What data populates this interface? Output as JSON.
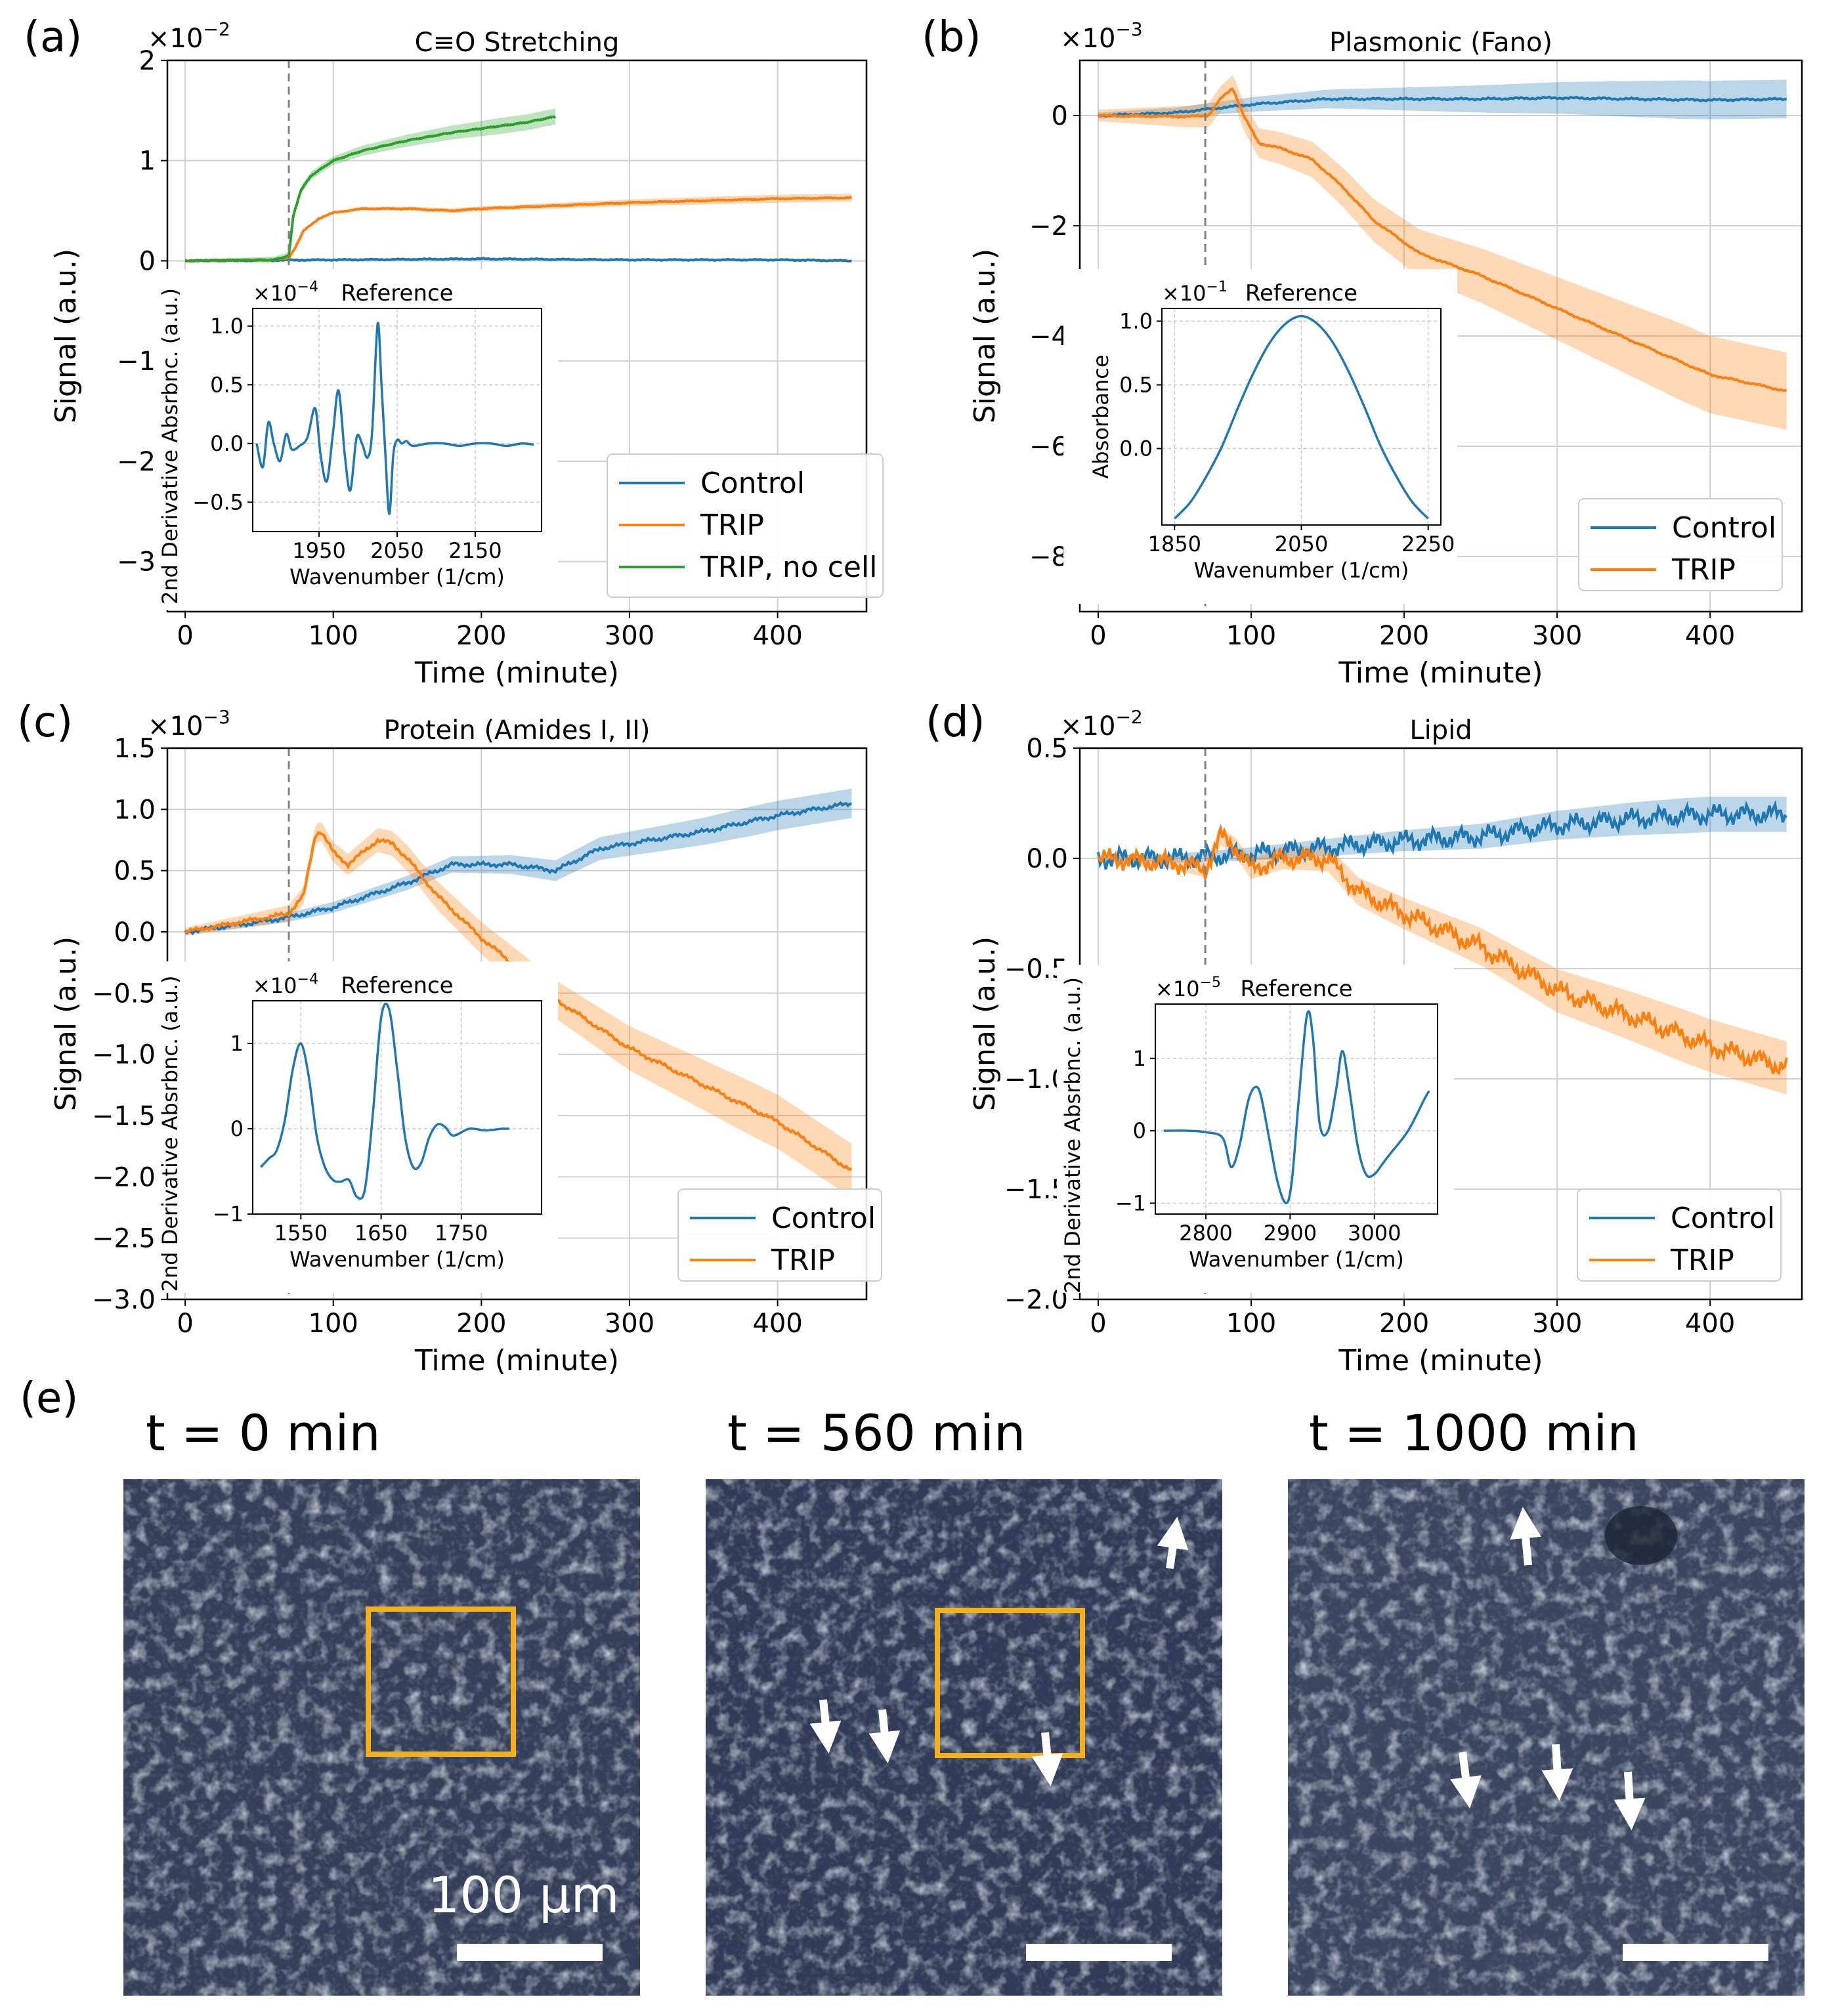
{
  "figure": {
    "panels": {
      "a": {
        "letter": "(a)",
        "title": "C≡O Stretching"
      },
      "b": {
        "letter": "(b)",
        "title": "Plasmonic (Fano)"
      },
      "c": {
        "letter": "(c)",
        "title": "Protein (Amides I, II)"
      },
      "d": {
        "letter": "(d)",
        "title": "Lipid"
      },
      "e": {
        "letter": "(e)"
      }
    },
    "common": {
      "xlabel": "Time (minute)",
      "ylabel": "Signal (a.u.)",
      "inset_title": "Reference",
      "inset_xlabel": "Wavenumber (1/cm)",
      "inset_ylabel_deriv": "2nd Derivative Absrbnc. (a.u.)",
      "inset_ylabel_abs": "Absorbance"
    },
    "legend": {
      "control": "Control",
      "trip": "TRIP",
      "trip_no_cell": "TRIP, no cell"
    },
    "colors": {
      "control": "#1f77b4",
      "trip": "#ff7f0e",
      "trip_no_cell": "#2ca02c",
      "dashed": "#808080",
      "scalebox": "#f2b01e"
    },
    "microscopy": {
      "images": [
        {
          "title": "t = 0 min",
          "scale_label": "100 μm"
        },
        {
          "title": "t = 560 min"
        },
        {
          "title": "t = 1000 min"
        }
      ]
    }
  },
  "chart_data": [
    {
      "type": "line",
      "title": "C≡O Stretching",
      "xlabel": "Time (minute)",
      "ylabel": "Signal (a.u.)",
      "multiplier_base": "×10",
      "multiplier_exp": "−2",
      "xlim": [
        -12,
        460
      ],
      "ylim": [
        -3.5,
        2.0
      ],
      "xticks": [
        0,
        100,
        200,
        300,
        400
      ],
      "xtick_labels": [
        "0",
        "100",
        "200",
        "300",
        "400"
      ],
      "yticks": [
        -3,
        -2,
        -1,
        0,
        1,
        2
      ],
      "ytick_labels": [
        "−3",
        "−2",
        "−1",
        "0",
        "1",
        "2"
      ],
      "vline_x": 70,
      "series": [
        {
          "name": "Control",
          "key": "control",
          "x": [
            0,
            100,
            200,
            300,
            400,
            450
          ],
          "y": [
            0.0,
            0.01,
            0.02,
            0.01,
            0.01,
            0.0
          ],
          "band": 0.01
        },
        {
          "name": "TRIP",
          "key": "trip",
          "x": [
            0,
            60,
            70,
            75,
            80,
            90,
            100,
            120,
            150,
            180,
            200,
            250,
            300,
            350,
            400,
            450
          ],
          "y": [
            0.0,
            0.01,
            0.03,
            0.15,
            0.3,
            0.42,
            0.48,
            0.52,
            0.52,
            0.5,
            0.52,
            0.55,
            0.58,
            0.6,
            0.62,
            0.63
          ],
          "band": 0.04
        },
        {
          "name": "TRIP, no cell",
          "key": "trip_no_cell",
          "x": [
            0,
            60,
            70,
            73,
            78,
            85,
            100,
            120,
            150,
            180,
            200,
            230,
            250
          ],
          "y": [
            0.0,
            0.01,
            0.05,
            0.45,
            0.7,
            0.85,
            1.0,
            1.1,
            1.2,
            1.28,
            1.32,
            1.38,
            1.44
          ],
          "band": 0.08
        }
      ],
      "inset": {
        "ylabel": "2nd Derivative Absrbnc. (a.u.)",
        "multiplier_base": "×10",
        "multiplier_exp": "−4",
        "xlim": [
          1865,
          2235
        ],
        "ylim": [
          -0.75,
          1.15
        ],
        "xticks": [
          1950,
          2050,
          2150
        ],
        "yticks": [
          -0.5,
          0.0,
          0.5,
          1.0
        ],
        "ytick_labels": [
          "−0.5",
          "0.0",
          "0.5",
          "1.0"
        ],
        "x": [
          1870,
          1878,
          1885,
          1892,
          1900,
          1908,
          1915,
          1925,
          1935,
          1945,
          1952,
          1960,
          1968,
          1975,
          1983,
          1990,
          1998,
          2005,
          2012,
          2018,
          2025,
          2030,
          2035,
          2040,
          2045,
          2050,
          2056,
          2062,
          2070,
          2090,
          2110,
          2130,
          2150,
          2170,
          2190,
          2210,
          2225
        ],
        "y": [
          0.0,
          -0.2,
          0.18,
          0.0,
          -0.15,
          0.08,
          -0.05,
          -0.02,
          0.05,
          0.3,
          -0.1,
          -0.32,
          0.1,
          0.45,
          -0.1,
          -0.4,
          0.05,
          0.0,
          -0.12,
          0.1,
          1.02,
          0.5,
          -0.1,
          -0.6,
          -0.1,
          0.03,
          0.0,
          0.02,
          -0.02,
          0.0,
          0.0,
          -0.02,
          0.0,
          0.0,
          -0.02,
          0.0,
          -0.01
        ]
      }
    },
    {
      "type": "line",
      "title": "Plasmonic (Fano)",
      "xlabel": "Time (minute)",
      "ylabel": "Signal (a.u.)",
      "multiplier_base": "×10",
      "multiplier_exp": "−3",
      "xlim": [
        -12,
        460
      ],
      "ylim": [
        -9.0,
        1.0
      ],
      "xticks": [
        0,
        100,
        200,
        300,
        400
      ],
      "xtick_labels": [
        "0",
        "100",
        "200",
        "300",
        "400"
      ],
      "yticks": [
        -8,
        -6,
        -4,
        -2,
        0
      ],
      "ytick_labels": [
        "−8",
        "−6",
        "−4",
        "−2",
        "0"
      ],
      "vline_x": 70,
      "series": [
        {
          "name": "Control",
          "key": "control",
          "x": [
            0,
            50,
            100,
            150,
            200,
            250,
            300,
            350,
            400,
            450
          ],
          "y": [
            0.0,
            0.05,
            0.2,
            0.3,
            0.3,
            0.3,
            0.32,
            0.3,
            0.28,
            0.3
          ],
          "band": 0.35
        },
        {
          "name": "TRIP",
          "key": "trip",
          "x": [
            0,
            60,
            72,
            80,
            88,
            95,
            105,
            120,
            140,
            160,
            180,
            210,
            250,
            300,
            350,
            400,
            450
          ],
          "y": [
            0.0,
            -0.02,
            0.0,
            0.3,
            0.5,
            0.0,
            -0.5,
            -0.6,
            -0.8,
            -1.3,
            -1.9,
            -2.5,
            -2.9,
            -3.5,
            -4.1,
            -4.7,
            -5.0
          ],
          "band": 0.7
        }
      ],
      "inset": {
        "ylabel": "Absorbance",
        "multiplier_base": "×10",
        "multiplier_exp": "−1",
        "xlim": [
          1830,
          2270
        ],
        "ylim": [
          -0.6,
          1.1
        ],
        "xticks": [
          1850,
          2050,
          2250
        ],
        "yticks": [
          0.0,
          0.5,
          1.0
        ],
        "ytick_labels": [
          "0.0",
          "0.5",
          "1.0"
        ],
        "x": [
          1850,
          1875,
          1900,
          1925,
          1950,
          1975,
          2000,
          2025,
          2050,
          2075,
          2100,
          2125,
          2150,
          2175,
          2200,
          2225,
          2250
        ],
        "y": [
          -0.55,
          -0.42,
          -0.22,
          0.02,
          0.32,
          0.6,
          0.83,
          0.98,
          1.04,
          0.98,
          0.83,
          0.6,
          0.32,
          0.02,
          -0.22,
          -0.42,
          -0.55
        ]
      }
    },
    {
      "type": "line",
      "title": "Protein (Amides I, II)",
      "xlabel": "Time (minute)",
      "ylabel": "Signal (a.u.)",
      "multiplier_base": "×10",
      "multiplier_exp": "−3",
      "xlim": [
        -12,
        460
      ],
      "ylim": [
        -3.0,
        1.5
      ],
      "xticks": [
        0,
        100,
        200,
        300,
        400
      ],
      "xtick_labels": [
        "0",
        "100",
        "200",
        "300",
        "400"
      ],
      "yticks": [
        -3.0,
        -2.5,
        -2.0,
        -1.5,
        -1.0,
        -0.5,
        0.0,
        0.5,
        1.0,
        1.5
      ],
      "ytick_labels": [
        "−3.0",
        "−2.5",
        "−2.0",
        "−1.5",
        "−1.0",
        "−0.5",
        "0.0",
        "0.5",
        "1.0",
        "1.5"
      ],
      "vline_x": 70,
      "series": [
        {
          "name": "Control",
          "key": "control",
          "x": [
            0,
            50,
            70,
            100,
            150,
            180,
            200,
            220,
            250,
            280,
            300,
            350,
            400,
            450
          ],
          "y": [
            0.0,
            0.08,
            0.12,
            0.2,
            0.4,
            0.55,
            0.55,
            0.55,
            0.5,
            0.68,
            0.72,
            0.82,
            0.95,
            1.05
          ],
          "band": 0.12
        },
        {
          "name": "TRIP",
          "key": "trip",
          "x": [
            0,
            70,
            80,
            88,
            92,
            100,
            110,
            120,
            130,
            140,
            150,
            170,
            200,
            250,
            300,
            350,
            400,
            450
          ],
          "y": [
            0.0,
            0.15,
            0.3,
            0.8,
            0.82,
            0.65,
            0.55,
            0.65,
            0.75,
            0.72,
            0.6,
            0.3,
            -0.05,
            -0.55,
            -0.95,
            -1.25,
            -1.55,
            -1.95
          ],
          "band": 0.22
        }
      ],
      "inset": {
        "ylabel": "2nd Derivative Absrbnc. (a.u.)",
        "multiplier_base": "×10",
        "multiplier_exp": "−4",
        "xlim": [
          1490,
          1850
        ],
        "ylim": [
          -1.0,
          1.5
        ],
        "xticks": [
          1550,
          1650,
          1750
        ],
        "yticks": [
          -1,
          0,
          1
        ],
        "ytick_labels": [
          "−1",
          "0",
          "1"
        ],
        "x": [
          1500,
          1510,
          1520,
          1530,
          1540,
          1550,
          1560,
          1570,
          1580,
          1590,
          1600,
          1610,
          1620,
          1630,
          1640,
          1650,
          1660,
          1670,
          1680,
          1690,
          1700,
          1710,
          1720,
          1730,
          1740,
          1760,
          1780,
          1800,
          1810
        ],
        "y": [
          -0.45,
          -0.35,
          -0.25,
          0.1,
          0.7,
          1.0,
          0.6,
          -0.1,
          -0.45,
          -0.6,
          -0.62,
          -0.6,
          -0.8,
          -0.7,
          0.2,
          1.3,
          1.4,
          0.7,
          -0.1,
          -0.45,
          -0.4,
          -0.1,
          0.05,
          0.02,
          -0.08,
          0.0,
          -0.02,
          0.0,
          0.0
        ]
      }
    },
    {
      "type": "line",
      "title": "Lipid",
      "xlabel": "Time (minute)",
      "ylabel": "Signal (a.u.)",
      "multiplier_base": "×10",
      "multiplier_exp": "−2",
      "xlim": [
        -12,
        460
      ],
      "ylim": [
        -2.0,
        0.5
      ],
      "xticks": [
        0,
        100,
        200,
        300,
        400
      ],
      "xtick_labels": [
        "0",
        "100",
        "200",
        "300",
        "400"
      ],
      "yticks": [
        -2.0,
        -1.5,
        -1.0,
        -0.5,
        0.0,
        0.5
      ],
      "ytick_labels": [
        "−2.0",
        "−1.5",
        "−1.0",
        "−0.5",
        "0.0",
        "0.5"
      ],
      "vline_x": 70,
      "series": [
        {
          "name": "Control",
          "key": "control",
          "x": [
            0,
            50,
            100,
            150,
            200,
            250,
            300,
            350,
            400,
            450
          ],
          "y": [
            0.0,
            0.0,
            0.02,
            0.05,
            0.08,
            0.1,
            0.15,
            0.18,
            0.2,
            0.2
          ],
          "band": 0.08
        },
        {
          "name": "TRIP",
          "key": "trip",
          "x": [
            0,
            50,
            70,
            80,
            90,
            100,
            120,
            150,
            170,
            200,
            250,
            300,
            350,
            400,
            450
          ],
          "y": [
            0.0,
            -0.02,
            -0.05,
            0.1,
            0.05,
            -0.05,
            0.0,
            0.0,
            -0.15,
            -0.25,
            -0.4,
            -0.6,
            -0.72,
            -0.85,
            -0.95
          ],
          "band": 0.12
        }
      ],
      "inset": {
        "ylabel": "2nd Derivative Absrbnc. (a.u.)",
        "multiplier_base": "×10",
        "multiplier_exp": "−5",
        "xlim": [
          2740,
          3075
        ],
        "ylim": [
          -1.15,
          1.75
        ],
        "xticks": [
          2800,
          2900,
          3000
        ],
        "yticks": [
          -1,
          0,
          1
        ],
        "ytick_labels": [
          "−1",
          "0",
          "1"
        ],
        "x": [
          2750,
          2780,
          2800,
          2820,
          2830,
          2840,
          2850,
          2858,
          2865,
          2875,
          2885,
          2895,
          2902,
          2910,
          2920,
          2927,
          2935,
          2945,
          2955,
          2962,
          2970,
          2980,
          2990,
          3000,
          3010,
          3020,
          3040,
          3060,
          3065
        ],
        "y": [
          0.0,
          0.0,
          -0.02,
          -0.1,
          -0.5,
          -0.2,
          0.4,
          0.6,
          0.5,
          -0.1,
          -0.7,
          -1.0,
          -0.7,
          0.4,
          1.6,
          1.3,
          0.1,
          0.0,
          0.6,
          1.1,
          0.6,
          -0.2,
          -0.6,
          -0.6,
          -0.45,
          -0.3,
          0.0,
          0.45,
          0.55
        ]
      }
    }
  ]
}
